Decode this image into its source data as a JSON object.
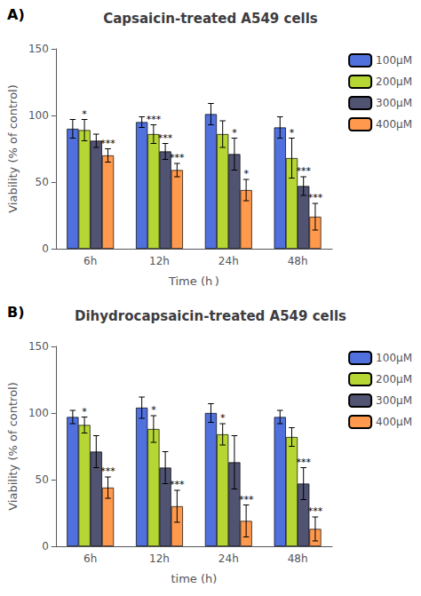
{
  "chart_data": [
    {
      "type": "bar",
      "label": "A)",
      "title": "Capsaicin-treated A549 cells",
      "xlabel": "Time (h )",
      "ylabel": "Viability (% of control)",
      "categories": [
        "6h",
        "12h",
        "24h",
        "48h"
      ],
      "series": [
        {
          "name": "100μM",
          "values": [
            90,
            95,
            101,
            91
          ],
          "errors": [
            7,
            4,
            8,
            8
          ]
        },
        {
          "name": "200μM",
          "values": [
            89,
            86,
            86,
            68
          ],
          "errors": [
            8,
            7,
            10,
            15
          ],
          "annotations": [
            "*",
            "***",
            null,
            "*"
          ]
        },
        {
          "name": "300μM",
          "values": [
            81,
            73,
            71,
            47
          ],
          "errors": [
            5,
            6,
            12,
            7
          ],
          "annotations": [
            null,
            "***",
            "*",
            "***"
          ]
        },
        {
          "name": "400μM",
          "values": [
            70,
            59,
            44,
            24
          ],
          "errors": [
            5,
            5,
            8,
            10
          ],
          "annotations": [
            "***",
            "***",
            "*",
            "***"
          ]
        }
      ],
      "ylim": [
        0,
        150
      ],
      "yticks": [
        0,
        50,
        100,
        150
      ],
      "grid": false,
      "legend": "upper right"
    },
    {
      "type": "bar",
      "label": "B)",
      "title": "Dihydrocapsaicin-treated A549 cells",
      "xlabel": "time (h)",
      "ylabel": "Viability (% of control)",
      "categories": [
        "6h",
        "12h",
        "24h",
        "48h"
      ],
      "series": [
        {
          "name": "100μM",
          "values": [
            97,
            104,
            100,
            97
          ],
          "errors": [
            5,
            8,
            7,
            5
          ]
        },
        {
          "name": "200μM",
          "values": [
            91,
            88,
            84,
            82
          ],
          "errors": [
            6,
            10,
            8,
            7
          ],
          "annotations": [
            "*",
            "*",
            "*",
            null
          ]
        },
        {
          "name": "300μM",
          "values": [
            71,
            59,
            63,
            47
          ],
          "errors": [
            12,
            12,
            20,
            12
          ],
          "annotations": [
            null,
            null,
            null,
            "***"
          ]
        },
        {
          "name": "400μM",
          "values": [
            44,
            30,
            19,
            13
          ],
          "errors": [
            8,
            12,
            12,
            9
          ],
          "annotations": [
            "***",
            "***",
            "***",
            "***"
          ]
        }
      ],
      "ylim": [
        0,
        150
      ],
      "yticks": [
        0,
        50,
        100,
        150
      ],
      "grid": false,
      "legend": "upper right"
    }
  ]
}
